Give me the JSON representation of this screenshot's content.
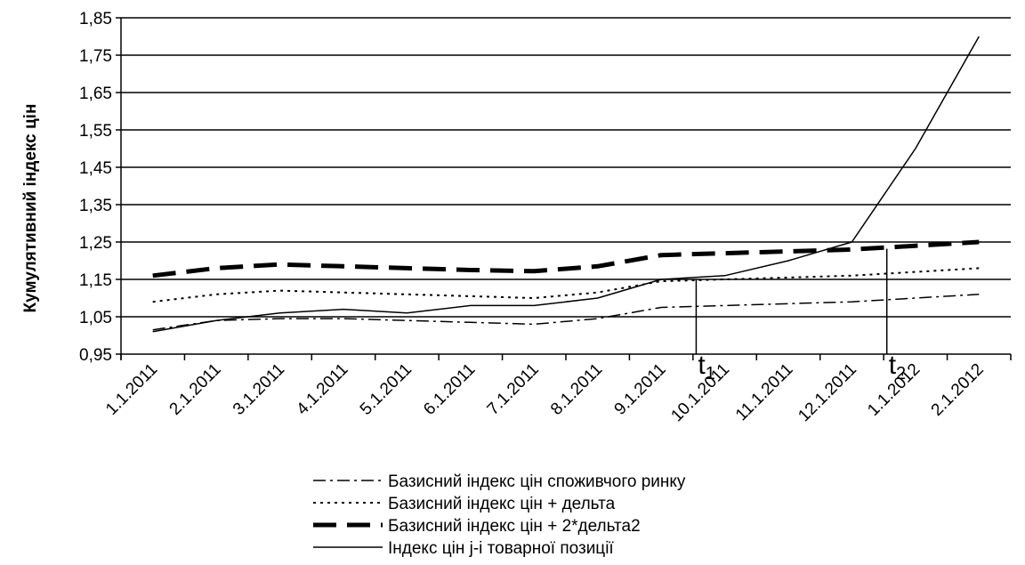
{
  "chart_data": {
    "type": "line",
    "title": "",
    "xlabel": "",
    "ylabel": "Кумулятивний індекс цін",
    "categories": [
      "1.1.2011",
      "2.1.2011",
      "3.1.2011",
      "4.1.2011",
      "5.1.2011",
      "6.1.2011",
      "7.1.2011",
      "8.1.2011",
      "9.1.2011",
      "10.1.2011",
      "11.1.2011",
      "12.1.2011",
      "1.1.2012",
      "2.1.2012"
    ],
    "yticks": [
      "0,95",
      "1,05",
      "1,15",
      "1,25",
      "1,35",
      "1,45",
      "1,55",
      "1,65",
      "1,75",
      "1,85"
    ],
    "ylim": [
      0.95,
      1.85
    ],
    "grid": "horizontal",
    "legend_position": "bottom",
    "series": [
      {
        "name": "Базисний індекс цін споживчого ринку",
        "style": "dash-dot",
        "values": [
          1.015,
          1.04,
          1.045,
          1.045,
          1.04,
          1.035,
          1.03,
          1.045,
          1.075,
          1.08,
          1.085,
          1.09,
          1.1,
          1.11
        ]
      },
      {
        "name": "Базисний індекс цін + дельта",
        "style": "dotted",
        "values": [
          1.09,
          1.11,
          1.12,
          1.115,
          1.11,
          1.105,
          1.1,
          1.115,
          1.145,
          1.15,
          1.155,
          1.16,
          1.17,
          1.18
        ]
      },
      {
        "name": "Базисний індекс цін + 2*дельта2",
        "style": "bold-dash",
        "values": [
          1.16,
          1.18,
          1.19,
          1.185,
          1.18,
          1.175,
          1.172,
          1.185,
          1.215,
          1.22,
          1.225,
          1.23,
          1.24,
          1.25
        ]
      },
      {
        "name": "Індекс цін j-і товарної позиції",
        "style": "solid",
        "values": [
          1.01,
          1.04,
          1.06,
          1.07,
          1.06,
          1.08,
          1.08,
          1.1,
          1.15,
          1.16,
          1.2,
          1.25,
          1.5,
          1.8
        ]
      }
    ],
    "annotations": [
      {
        "label": "t",
        "sub": "1",
        "category_index": 8.0,
        "y": 1.15
      },
      {
        "label": "t",
        "sub": "2",
        "category_index": 11.0,
        "y": 1.232
      }
    ]
  }
}
